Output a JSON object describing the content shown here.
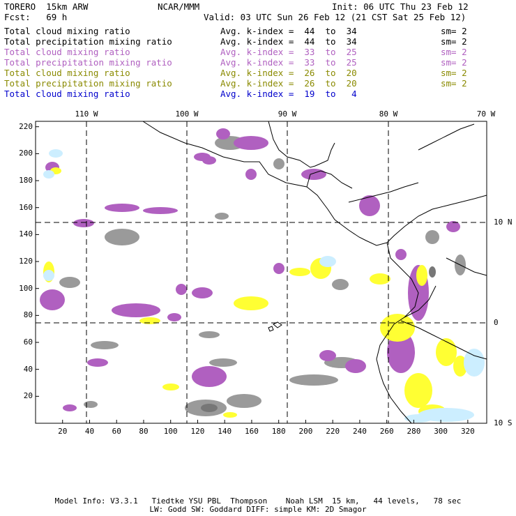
{
  "header": {
    "left1": "TORERO  15km ARW",
    "center1": "NCAR/MMM",
    "right1": "Init: 06 UTC Thu 23 Feb 12",
    "left2": "Fcst:   69 h",
    "right2": "Valid: 03 UTC Sun 26 Feb 12 (21 CST Sat 25 Feb 12)"
  },
  "legend": [
    {
      "field": "Total cloud mixing ratio",
      "kindex": "Avg. k-index =  44  to  34",
      "sm": "sm= 2",
      "color": "#000000"
    },
    {
      "field": "Total precipitation mixing ratio",
      "kindex": "Avg. k-index =  44  to  34",
      "sm": "sm= 2",
      "color": "#000000"
    },
    {
      "field": "Total cloud mixing ratio",
      "kindex": "Avg. k-index =  33  to  25",
      "sm": "sm= 2",
      "color": "#b060c0"
    },
    {
      "field": "Total precipitation mixing ratio",
      "kindex": "Avg. k-index =  33  to  25",
      "sm": "sm= 2",
      "color": "#b060c0"
    },
    {
      "field": "Total cloud mixing ratio",
      "kindex": "Avg. k-index =  26  to  20",
      "sm": "sm= 2",
      "color": "#8a8a00"
    },
    {
      "field": "Total precipitation mixing ratio",
      "kindex": "Avg. k-index =  26  to  20",
      "sm": "sm= 2",
      "color": "#8a8a00"
    },
    {
      "field": "Total cloud mixing ratio",
      "kindex": "Avg. k-index =  19  to   4",
      "sm": "",
      "color": "#0000cc"
    }
  ],
  "axes": {
    "top_lon_labels": [
      "110 W",
      "100 W",
      "90 W",
      "80 W",
      "70 W"
    ],
    "right_lat_labels": [
      "10 N",
      "0",
      "10 S"
    ],
    "x_ticks": [
      "20",
      "40",
      "60",
      "80",
      "100",
      "120",
      "140",
      "160",
      "180",
      "200",
      "220",
      "240",
      "260",
      "280",
      "300",
      "320"
    ],
    "y_ticks": [
      "20",
      "40",
      "60",
      "80",
      "100",
      "120",
      "140",
      "160",
      "180",
      "200",
      "220"
    ]
  },
  "colors": {
    "cloud_dark": "#777777",
    "cloud_gray": "#9a9a9a",
    "purple": "#b060c0",
    "yellow": "#ffff33",
    "light_blue": "#cceeff",
    "coast": "#000000"
  },
  "footer": {
    "line1": "Model Info: V3.3.1   Tiedtke YSU PBL  Thompson    Noah LSM  15 km,   44 levels,   78 sec",
    "line2": "LW: Godd SW: Goddard DIFF: simple KM: 2D Smagor"
  }
}
